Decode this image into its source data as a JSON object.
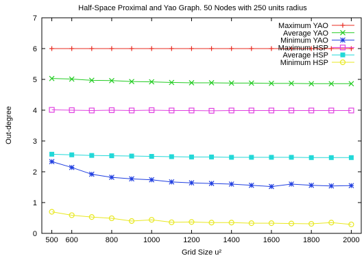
{
  "chart_data": {
    "type": "line",
    "title": "Half-Space Proximal and Yao Graph. 50 Nodes with 250 units radius",
    "xlabel": "Grid Size u²",
    "ylabel": "Out-degree",
    "xlim": [
      450,
      2050
    ],
    "ylim": [
      0,
      7
    ],
    "xticks": [
      500,
      600,
      800,
      1000,
      1200,
      1400,
      1600,
      1800,
      2000
    ],
    "yticks": [
      0,
      1,
      2,
      3,
      4,
      5,
      6,
      7
    ],
    "grid": false,
    "legend_position": "top-right",
    "x": [
      500,
      600,
      700,
      800,
      900,
      1000,
      1100,
      1200,
      1300,
      1400,
      1500,
      1600,
      1700,
      1800,
      1900,
      2000
    ],
    "series": [
      {
        "name": "Maximum YAO",
        "color": "#e8281e",
        "marker": "plus",
        "values": [
          6,
          6,
          6,
          6,
          6,
          6,
          6,
          6,
          6,
          6,
          6,
          6,
          6,
          6,
          6,
          6
        ]
      },
      {
        "name": "Average YAO",
        "color": "#22cc22",
        "marker": "cross",
        "values": [
          5.03,
          5.01,
          4.97,
          4.96,
          4.93,
          4.92,
          4.9,
          4.89,
          4.89,
          4.88,
          4.88,
          4.87,
          4.87,
          4.86,
          4.86,
          4.86
        ]
      },
      {
        "name": "Minimum YAO",
        "color": "#1f3ee0",
        "marker": "star",
        "values": [
          2.33,
          2.14,
          1.92,
          1.82,
          1.77,
          1.74,
          1.67,
          1.64,
          1.62,
          1.6,
          1.56,
          1.52,
          1.6,
          1.56,
          1.54,
          1.55
        ]
      },
      {
        "name": "Maximum HSP",
        "color": "#e040e0",
        "marker": "square",
        "values": [
          4.01,
          4.0,
          3.99,
          4.0,
          3.99,
          4.0,
          3.99,
          3.99,
          3.98,
          3.99,
          3.99,
          3.99,
          3.99,
          3.99,
          3.99,
          3.99
        ]
      },
      {
        "name": "Average HSP",
        "color": "#22d8d8",
        "marker": "filled-square",
        "values": [
          2.57,
          2.55,
          2.53,
          2.52,
          2.51,
          2.5,
          2.49,
          2.48,
          2.48,
          2.47,
          2.47,
          2.47,
          2.47,
          2.46,
          2.46,
          2.46
        ]
      },
      {
        "name": "Minimum HSP",
        "color": "#e8e820",
        "marker": "circle",
        "values": [
          0.7,
          0.59,
          0.53,
          0.49,
          0.4,
          0.44,
          0.36,
          0.37,
          0.35,
          0.35,
          0.33,
          0.33,
          0.32,
          0.31,
          0.35,
          0.29
        ]
      }
    ]
  }
}
